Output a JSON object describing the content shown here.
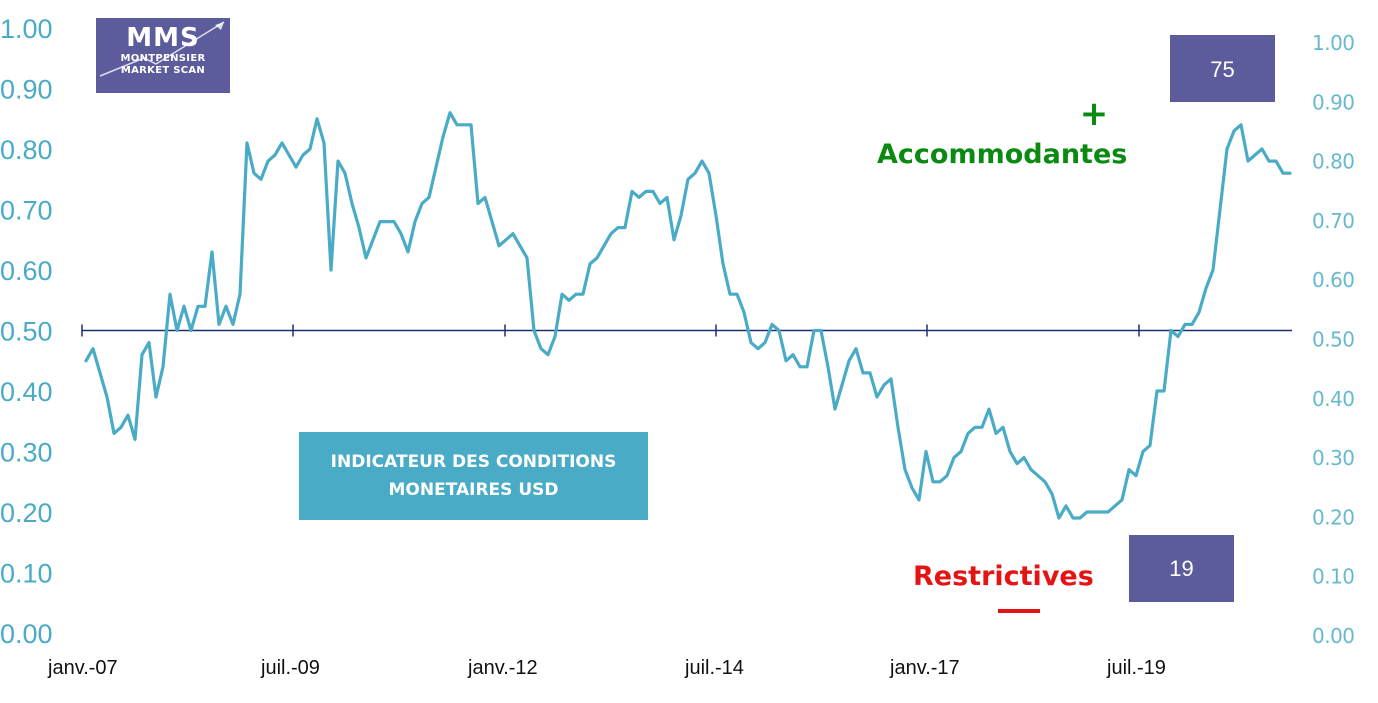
{
  "chart_data": {
    "type": "line",
    "series": [
      {
        "values": [
          0.45,
          0.47,
          0.43,
          0.39,
          0.33,
          0.34,
          0.36,
          0.32,
          0.46,
          0.48,
          0.39,
          0.44,
          0.56,
          0.5,
          0.54,
          0.5,
          0.54,
          0.54,
          0.63,
          0.51,
          0.54,
          0.51,
          0.56,
          0.81,
          0.76,
          0.75,
          0.78,
          0.79,
          0.81,
          0.79,
          0.77,
          0.79,
          0.8,
          0.85,
          0.81,
          0.6,
          0.78,
          0.76,
          0.71,
          0.67,
          0.62,
          0.65,
          0.68,
          0.68,
          0.68,
          0.66,
          0.63,
          0.68,
          0.71,
          0.72,
          0.77,
          0.82,
          0.86,
          0.84,
          0.84,
          0.84,
          0.71,
          0.72,
          0.68,
          0.64,
          0.65,
          0.66,
          0.64,
          0.62,
          0.5,
          0.47,
          0.46,
          0.49,
          0.56,
          0.55,
          0.56,
          0.56,
          0.61,
          0.62,
          0.64,
          0.66,
          0.67,
          0.67,
          0.73,
          0.72,
          0.73,
          0.73,
          0.71,
          0.72,
          0.65,
          0.69,
          0.75,
          0.76,
          0.78,
          0.76,
          0.69,
          0.61,
          0.56,
          0.56,
          0.53,
          0.48,
          0.47,
          0.48,
          0.51,
          0.5,
          0.45,
          0.46,
          0.44,
          0.44,
          0.5,
          0.5,
          0.44,
          0.37,
          0.41,
          0.45,
          0.47,
          0.43,
          0.43,
          0.39,
          0.41,
          0.42,
          0.34,
          0.27,
          0.24,
          0.22,
          0.3,
          0.25,
          0.25,
          0.26,
          0.29,
          0.3,
          0.33,
          0.34,
          0.34,
          0.37,
          0.33,
          0.34,
          0.3,
          0.28,
          0.29,
          0.27,
          0.26,
          0.25,
          0.23,
          0.19,
          0.21,
          0.19,
          0.19,
          0.2,
          0.2,
          0.2,
          0.2,
          0.21,
          0.22,
          0.27,
          0.26,
          0.3,
          0.31,
          0.4,
          0.4,
          0.5,
          0.49,
          0.51,
          0.51,
          0.53,
          0.57,
          0.6,
          0.7,
          0.8,
          0.83,
          0.84,
          0.78,
          0.79,
          0.8,
          0.78,
          0.78,
          0.76,
          0.76
        ]
      }
    ],
    "x_range": [
      "janv.-07",
      "avr.-20"
    ],
    "xtick_labels": [
      "janv.-07",
      "juil.-09",
      "janv.-12",
      "juil.-14",
      "janv.-17",
      "juil.-19"
    ],
    "ytick_labels_left": [
      "0.00",
      "0.10",
      "0.20",
      "0.30",
      "0.40",
      "0.50",
      "0.60",
      "0.70",
      "0.80",
      "0.90",
      "1.00"
    ],
    "ytick_labels_right": [
      "0.00",
      "0.10",
      "0.20",
      "0.30",
      "0.40",
      "0.50",
      "0.60",
      "0.70",
      "0.80",
      "0.90",
      "1.00"
    ],
    "ylim": [
      0,
      1
    ],
    "reference_line": 0.5,
    "grid": false,
    "colors": {
      "line": "#4aabc6",
      "reference": "#1f2f6e",
      "left_ticks": "#4aabc6",
      "right_ticks": "#67b9cf"
    }
  },
  "logo": {
    "mark": "MMS",
    "line1": "MONTPENSIER",
    "line2": "MARKET SCAN"
  },
  "title_box": {
    "line1": "INDICATEUR DES CONDITIONS",
    "line2": "MONETAIRES USD"
  },
  "annotations": {
    "high_value": "75",
    "low_value": "19",
    "plus": "+",
    "accommodating": "Accommodantes",
    "restrictive": "Restrictives"
  },
  "colors": {
    "accent": "#4aabc6",
    "box": "#5c5c9c",
    "accommodating": "#0a8a10",
    "restrictive": "#e41414"
  }
}
